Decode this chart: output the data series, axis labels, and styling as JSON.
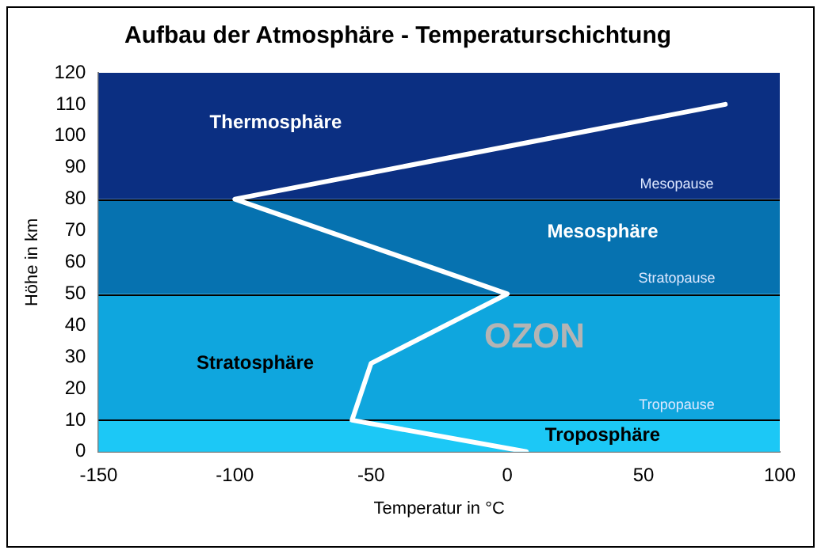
{
  "chart_data": {
    "type": "line",
    "title": "Aufbau der Atmosphäre - Temperaturschichtung",
    "xlabel": "Temperatur in °C",
    "ylabel": "Höhe in km",
    "x": [
      7,
      -57,
      -50,
      0,
      -100,
      80
    ],
    "series": [
      {
        "color": "#ffffff",
        "values": [
          0,
          10,
          28,
          50,
          80,
          110
        ]
      }
    ],
    "xlim": [
      -150,
      100
    ],
    "xticks": [
      -150,
      -100,
      -50,
      0,
      50,
      100
    ],
    "ylim": [
      0,
      120
    ],
    "yticks": [
      0,
      10,
      20,
      30,
      40,
      50,
      60,
      70,
      80,
      90,
      100,
      110,
      120
    ],
    "grid": false,
    "legend": false,
    "marker": "none",
    "line_style": "solid",
    "bands": [
      {
        "axis": "y",
        "from": 0,
        "to": 10,
        "color": "#1cc8f6",
        "label": "Troposphäre"
      },
      {
        "axis": "y",
        "from": 10,
        "to": 50,
        "color": "#0fa6de",
        "label": "Stratosphäre"
      },
      {
        "axis": "y",
        "from": 50,
        "to": 80,
        "color": "#0672b0",
        "label": "Mesosphäre"
      },
      {
        "axis": "y",
        "from": 80,
        "to": 120,
        "color": "#0b2f82",
        "label": "Thermosphäre"
      }
    ],
    "ref_lines": [
      {
        "axis": "y",
        "value": 10,
        "label": "Tropopause",
        "color": "#000000"
      },
      {
        "axis": "y",
        "value": 50,
        "label": "Stratopause",
        "color": "#000000"
      },
      {
        "axis": "y",
        "value": 80,
        "label": "Mesopause",
        "color": "#000000"
      }
    ],
    "annotations": [
      "OZON"
    ]
  }
}
